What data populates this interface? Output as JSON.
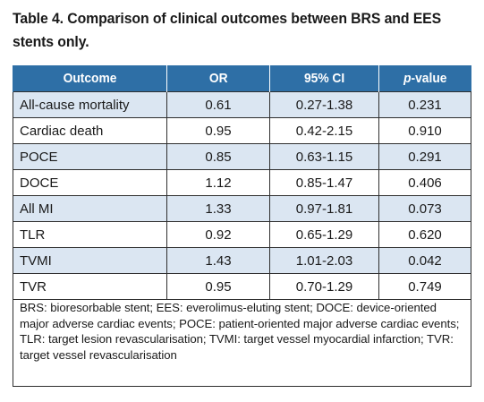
{
  "title": "Table 4. Comparison of clinical outcomes between BRS and EES stents only.",
  "table": {
    "headers": {
      "outcome": "Outcome",
      "or": "OR",
      "ci": "95% CI",
      "p_italic": "p",
      "p_rest": "-value"
    },
    "rows": [
      {
        "outcome": "All-cause mortality",
        "or": "0.61",
        "ci": "0.27-1.38",
        "p": "0.231"
      },
      {
        "outcome": "Cardiac death",
        "or": "0.95",
        "ci": "0.42-2.15",
        "p": "0.910"
      },
      {
        "outcome": "POCE",
        "or": "0.85",
        "ci": "0.63-1.15",
        "p": "0.291"
      },
      {
        "outcome": "DOCE",
        "or": "1.12",
        "ci": "0.85-1.47",
        "p": "0.406"
      },
      {
        "outcome": "All MI",
        "or": "1.33",
        "ci": "0.97-1.81",
        "p": "0.073"
      },
      {
        "outcome": "TLR",
        "or": "0.92",
        "ci": "0.65-1.29",
        "p": "0.620"
      },
      {
        "outcome": "TVMI",
        "or": "1.43",
        "ci": "1.01-2.03",
        "p": "0.042"
      },
      {
        "outcome": "TVR",
        "or": "0.95",
        "ci": "0.70-1.29",
        "p": "0.749"
      }
    ]
  },
  "footnote": "BRS: bioresorbable stent; EES: everolimus-eluting stent; DOCE: device-oriented major adverse cardiac events; POCE: patient-oriented major adverse cardiac events; TLR: target lesion revascularisation; TVMI: target vessel myocardial infarction; TVR: target vessel revascularisation",
  "colors": {
    "header_bg": "#2e6fa6",
    "row_shade": "#dbe6f2",
    "border": "#2e2e2e"
  }
}
